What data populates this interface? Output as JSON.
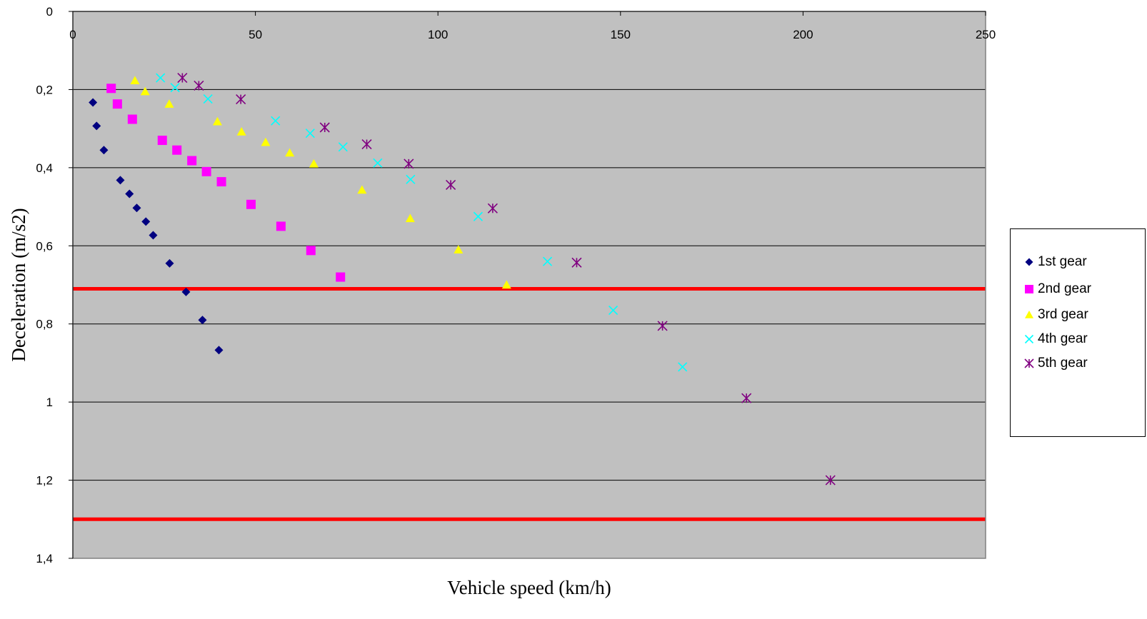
{
  "chart_data": {
    "type": "scatter",
    "xlabel": "Vehicle speed (km/h)",
    "ylabel": "Deceleration (m/s2)",
    "xlim": [
      0,
      250
    ],
    "ylim": [
      0,
      1.4
    ],
    "y_axis_inverted": true,
    "x_axis_position": "top",
    "x_ticks": [
      "0",
      "50",
      "100",
      "150",
      "200",
      "250"
    ],
    "y_ticks": [
      "0",
      "0,2",
      "0,4",
      "0,6",
      "0,8",
      "1",
      "1,2",
      "1,4"
    ],
    "grid": "horizontal",
    "plot_background": "#c0c0c0",
    "legend_position": "right",
    "reference_lines": [
      {
        "axis": "y",
        "value": 0.71,
        "color": "#ff0000"
      },
      {
        "axis": "y",
        "value": 1.3,
        "color": "#ff0000"
      }
    ],
    "series": [
      {
        "name": "1st gear",
        "marker": "diamond",
        "color": "#000080",
        "points": [
          [
            5.5,
            0.233
          ],
          [
            6.5,
            0.293
          ],
          [
            8.5,
            0.355
          ],
          [
            13,
            0.432
          ],
          [
            15.5,
            0.467
          ],
          [
            17.5,
            0.503
          ],
          [
            20,
            0.538
          ],
          [
            22,
            0.573
          ],
          [
            26.5,
            0.645
          ],
          [
            31,
            0.718
          ],
          [
            35.5,
            0.79
          ],
          [
            40,
            0.867
          ]
        ]
      },
      {
        "name": "2nd gear",
        "marker": "square",
        "color": "#ff00ff",
        "points": [
          [
            10.5,
            0.197
          ],
          [
            12.2,
            0.237
          ],
          [
            16.3,
            0.276
          ],
          [
            24.5,
            0.33
          ],
          [
            28.5,
            0.355
          ],
          [
            32.6,
            0.382
          ],
          [
            36.6,
            0.41
          ],
          [
            40.7,
            0.436
          ],
          [
            48.8,
            0.494
          ],
          [
            57,
            0.55
          ],
          [
            65.2,
            0.612
          ],
          [
            73.3,
            0.68
          ]
        ]
      },
      {
        "name": "3rd gear",
        "marker": "triangle",
        "color": "#ffff00",
        "points": [
          [
            17,
            0.177
          ],
          [
            19.8,
            0.205
          ],
          [
            26.4,
            0.237
          ],
          [
            39.6,
            0.282
          ],
          [
            46.2,
            0.308
          ],
          [
            52.8,
            0.335
          ],
          [
            59.4,
            0.362
          ],
          [
            66,
            0.39
          ],
          [
            79.2,
            0.457
          ],
          [
            92.4,
            0.53
          ],
          [
            105.6,
            0.61
          ],
          [
            118.8,
            0.7
          ]
        ]
      },
      {
        "name": "4th gear",
        "marker": "x",
        "color": "#00ffff",
        "points": [
          [
            24,
            0.17
          ],
          [
            28,
            0.195
          ],
          [
            37,
            0.224
          ],
          [
            55.5,
            0.28
          ],
          [
            65,
            0.312
          ],
          [
            74,
            0.347
          ],
          [
            83.5,
            0.388
          ],
          [
            92.5,
            0.43
          ],
          [
            111,
            0.525
          ],
          [
            130,
            0.64
          ],
          [
            148,
            0.765
          ],
          [
            167,
            0.91
          ]
        ]
      },
      {
        "name": "5th gear",
        "marker": "asterisk",
        "color": "#800080",
        "points": [
          [
            30,
            0.17
          ],
          [
            34.5,
            0.19
          ],
          [
            46,
            0.225
          ],
          [
            69,
            0.297
          ],
          [
            80.5,
            0.34
          ],
          [
            92,
            0.39
          ],
          [
            103.5,
            0.444
          ],
          [
            115,
            0.504
          ],
          [
            138,
            0.643
          ],
          [
            161.5,
            0.805
          ],
          [
            184.5,
            0.99
          ],
          [
            207.5,
            1.2
          ]
        ]
      }
    ]
  }
}
